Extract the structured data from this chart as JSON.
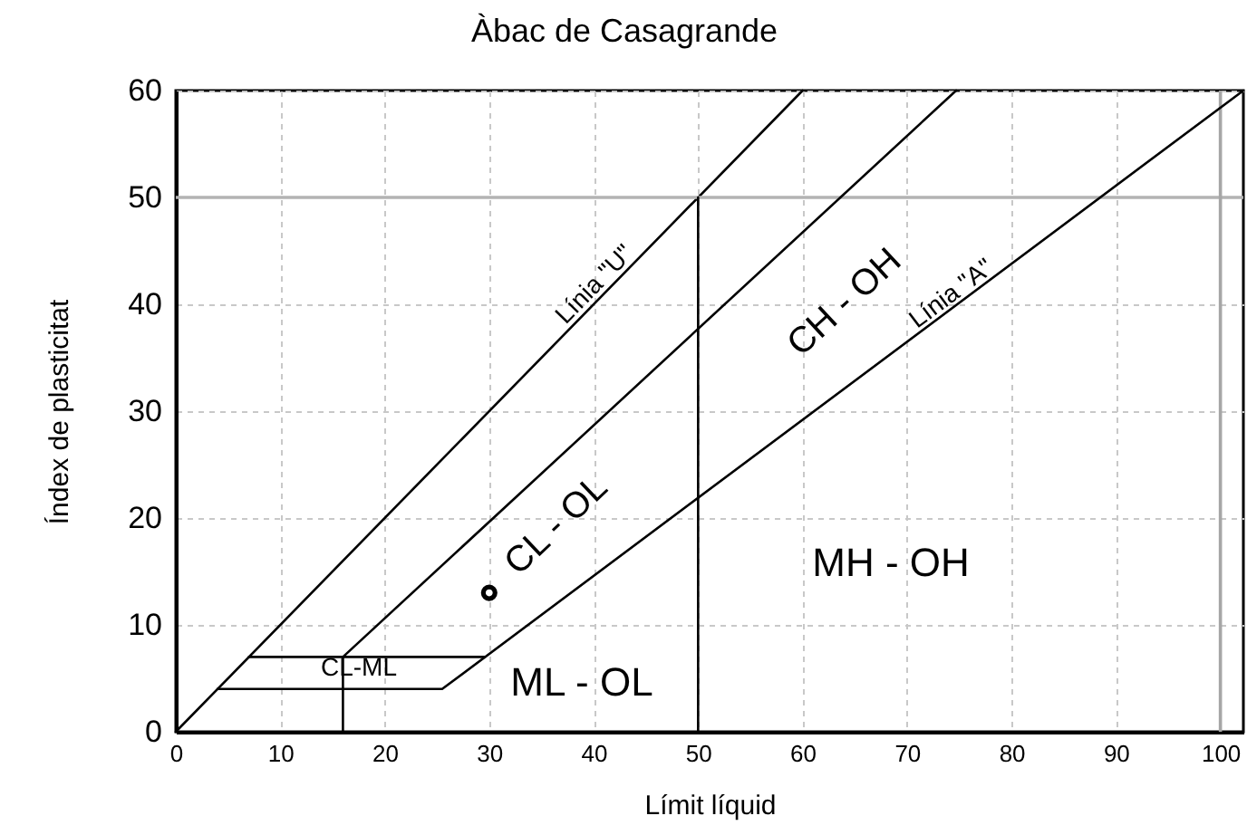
{
  "chart_data": {
    "type": "line",
    "title": "Àbac de Casagrande",
    "xlabel": "Límit líquid",
    "ylabel": "Índex de plasticitat",
    "xlim": [
      0,
      102.2
    ],
    "ylim": [
      0,
      60
    ],
    "xticks": [
      0,
      10,
      20,
      30,
      40,
      50,
      60,
      70,
      80,
      90,
      100
    ],
    "yticks": [
      0,
      10,
      20,
      30,
      40,
      50,
      60
    ],
    "grid": true,
    "line_style": "solid",
    "series": [
      {
        "color": "#000000",
        "x": [
          0,
          60
        ],
        "values": [
          0,
          60
        ]
      },
      {
        "color": "#000000",
        "x": [
          16,
          74.7
        ],
        "values": [
          7,
          60
        ]
      },
      {
        "color": "#000000",
        "x": [
          4,
          25.5,
          102.2
        ],
        "values": [
          4,
          4,
          60
        ]
      },
      {
        "color": "#000000",
        "x": [
          7,
          29.6
        ],
        "values": [
          7,
          7
        ]
      },
      {
        "color": "#000000",
        "x": [
          16,
          16
        ],
        "values": [
          0,
          7
        ]
      },
      {
        "color": "#000000",
        "x": [
          50,
          50
        ],
        "values": [
          0,
          50
        ]
      },
      {
        "type": "scatter",
        "marker": "circle",
        "color": "#000000",
        "x": [
          30
        ],
        "values": [
          13
        ]
      }
    ],
    "ref_lines": [
      {
        "axis": "y",
        "value": 50,
        "color": "#b3b3b3"
      },
      {
        "axis": "x",
        "value": 100,
        "color": "#a6a6a6"
      }
    ],
    "annotations": [
      {
        "text": "Línia \"U\"",
        "x": 41,
        "y": 41
      },
      {
        "text": "Línia \"A\"",
        "x": 75,
        "y": 40
      },
      "CH - OH",
      "CL - OL",
      "MH - OH",
      "ML - OL",
      "CL-ML"
    ]
  }
}
